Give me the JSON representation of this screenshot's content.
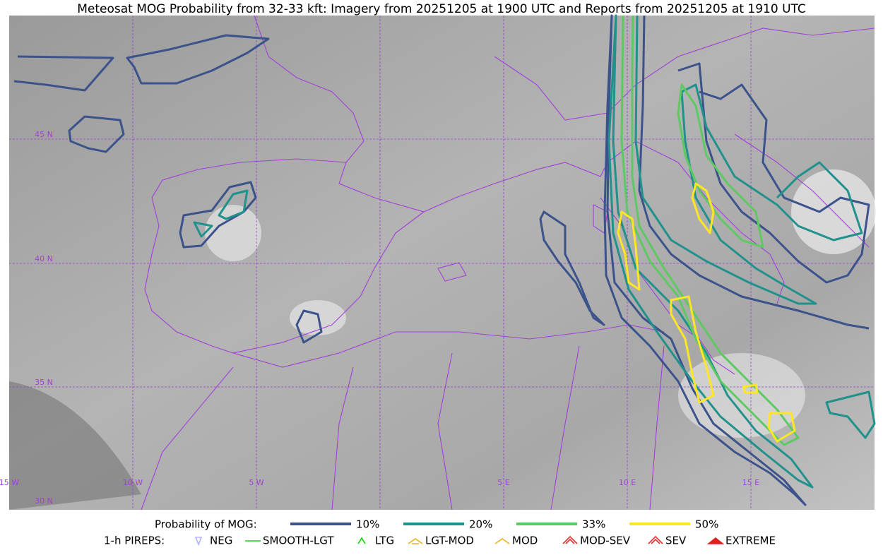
{
  "title": "Meteosat MOG Probability from 32-33 kft: Imagery from 20251205 at 1900 UTC and Reports from 20251205 at 1910 UTC",
  "grid_labels": {
    "lat": [
      "45 N",
      "40 N",
      "35 N",
      "30 N"
    ],
    "lon": [
      "15 W",
      "10 W",
      "5 W",
      "5 E",
      "10 E",
      "15 E"
    ]
  },
  "legend": {
    "probability": {
      "label": "Probability of MOG:",
      "levels": [
        {
          "label": "10%",
          "color": "#3b528b"
        },
        {
          "label": "20%",
          "color": "#21918c"
        },
        {
          "label": "33%",
          "color": "#5ec962"
        },
        {
          "label": "50%",
          "color": "#fde725"
        }
      ]
    },
    "pireps": {
      "label": "1-h PIREPS:",
      "items": [
        {
          "label": "NEG",
          "color": "#b0b0ff"
        },
        {
          "label": "SMOOTH-LGT",
          "color": "#22cc22"
        },
        {
          "label": "LTG",
          "color": "#00dd00"
        },
        {
          "label": "LGT-MOD",
          "color": "#f0b020"
        },
        {
          "label": "MOD",
          "color": "#f0b020"
        },
        {
          "label": "MOD-SEV",
          "color": "#e03030"
        },
        {
          "label": "SEV",
          "color": "#e03030"
        },
        {
          "label": "EXTREME",
          "color": "#e02020"
        }
      ]
    }
  }
}
